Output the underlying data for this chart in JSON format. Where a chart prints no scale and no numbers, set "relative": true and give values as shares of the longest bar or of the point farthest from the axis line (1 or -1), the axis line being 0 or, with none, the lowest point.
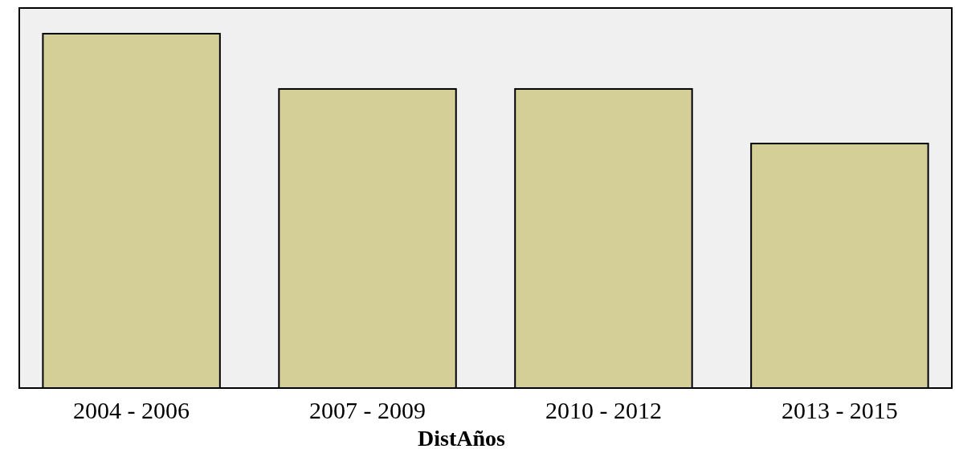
{
  "chart_data": {
    "type": "bar",
    "xlabel": "DistAños",
    "categories": [
      "2004 - 2006",
      "2007 - 2009",
      "2010 - 2012",
      "2013 - 2015"
    ],
    "values": [
      1,
      0.844,
      0.844,
      0.69
    ],
    "color": "#d3cf96",
    "relative": true
  }
}
